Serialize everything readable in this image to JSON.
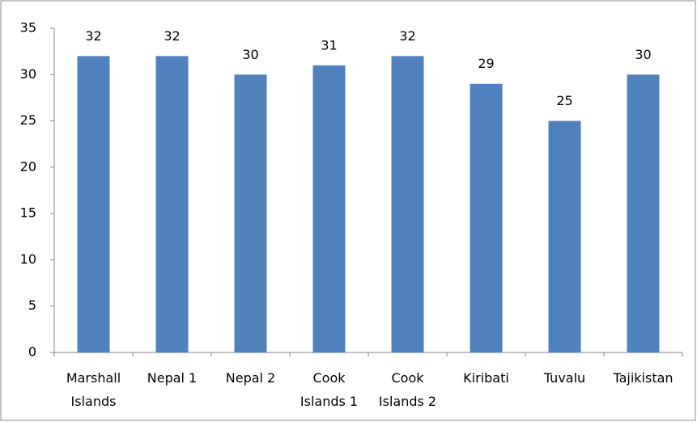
{
  "chart_data": {
    "type": "bar",
    "categories": [
      "Marshall Islands",
      "Nepal 1",
      "Nepal 2",
      "Cook Islands 1",
      "Cook Islands 2",
      "Kiribati",
      "Tuvalu",
      "Tajikistan"
    ],
    "values": [
      32,
      32,
      30,
      31,
      32,
      29,
      25,
      30
    ],
    "color": "#4f81bd",
    "ylim": [
      0,
      35
    ],
    "yticks": [
      0,
      5,
      10,
      15,
      20,
      25,
      30,
      35
    ],
    "grid": false
  }
}
